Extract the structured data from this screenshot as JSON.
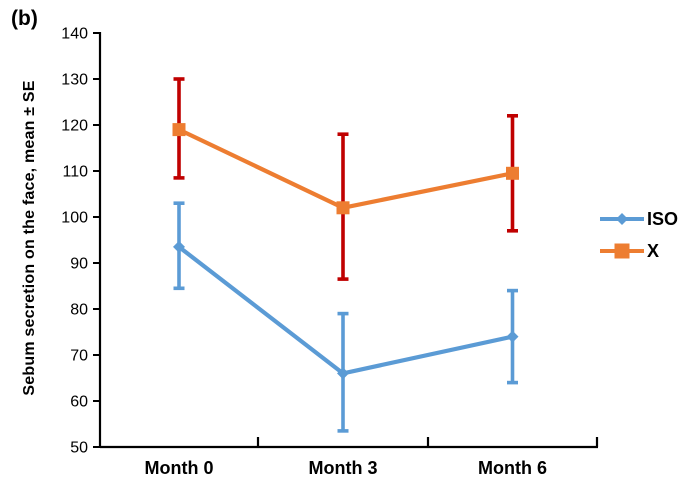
{
  "figure_label": "(b)",
  "chart_data": {
    "type": "line",
    "categories": [
      "Month 0",
      "Month 3",
      "Month 6"
    ],
    "series": [
      {
        "name": "ISO",
        "color": "#5B9BD5",
        "error_color": "#5B9BD5",
        "marker": "diamond",
        "values": [
          93.5,
          66,
          74
        ],
        "error_low": [
          84.5,
          53.5,
          64
        ],
        "error_high": [
          103,
          79,
          84
        ]
      },
      {
        "name": "X",
        "color": "#ED7D31",
        "error_color": "#C00000",
        "marker": "square",
        "values": [
          119,
          102,
          109.5
        ],
        "error_low": [
          108.5,
          86.5,
          97
        ],
        "error_high": [
          130,
          118,
          122
        ]
      }
    ],
    "title": "",
    "xlabel": "",
    "ylabel": "Sebum secretion on the face, mean ± SE",
    "ylim": [
      50,
      140
    ],
    "ytick_step": 10,
    "grid": false,
    "legend_position": "right"
  }
}
